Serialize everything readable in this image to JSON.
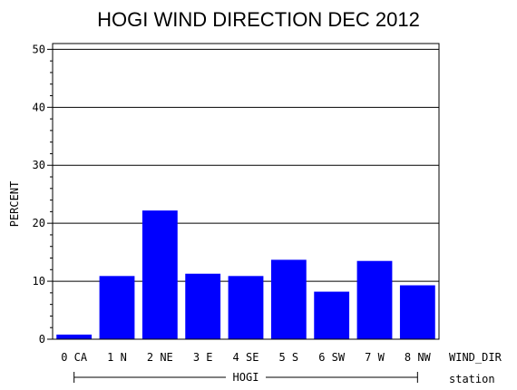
{
  "chart_data": {
    "type": "bar",
    "title": "HOGI WIND DIRECTION DEC 2012",
    "ylabel": "PERCENT",
    "xlabel": "WIND_DIR",
    "group_axis_label": "station",
    "group_label": "HOGI",
    "categories": [
      "0 CA",
      "1 N",
      "2 NE",
      "3 E",
      "4 SE",
      "5 S",
      "6 SW",
      "7 W",
      "8 NW"
    ],
    "values": [
      0.8,
      10.9,
      22.2,
      11.3,
      10.9,
      13.7,
      8.2,
      13.5,
      9.3
    ],
    "ylim": [
      0,
      51
    ],
    "yticks": [
      0,
      10,
      20,
      30,
      40,
      50
    ],
    "bar_color": "#0000ff",
    "grid": true
  }
}
